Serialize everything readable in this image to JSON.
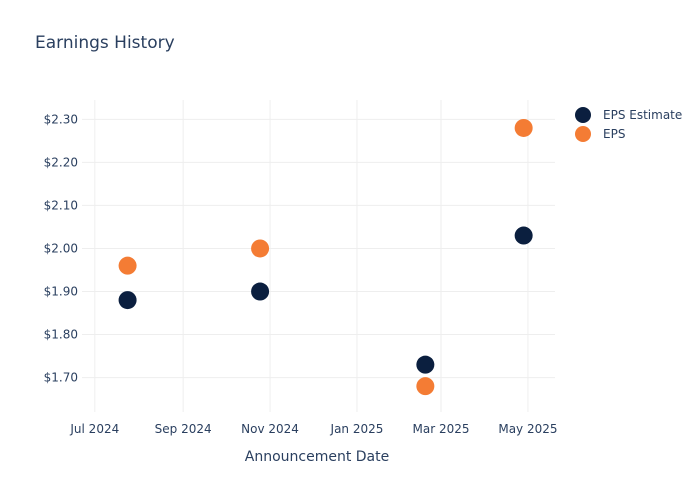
{
  "chart_data": {
    "type": "scatter",
    "title": "Earnings History",
    "xlabel": "Announcement Date",
    "ylabel": "",
    "x_ticks": [
      "2024-07-01",
      "2024-09-01",
      "2024-11-01",
      "2025-01-01",
      "2025-03-01",
      "2025-05-01"
    ],
    "x_tick_labels": [
      "Jul 2024",
      "Sep 2024",
      "Nov 2024",
      "Jan 2025",
      "Mar 2025",
      "May 2025"
    ],
    "xlim": [
      "2024-06-22",
      "2025-05-20"
    ],
    "y_ticks": [
      1.7,
      1.8,
      1.9,
      2.0,
      2.1,
      2.2,
      2.3
    ],
    "y_tick_labels": [
      "$1.70",
      "$1.80",
      "$1.90",
      "$2.00",
      "$2.10",
      "$2.20",
      "$2.30"
    ],
    "ylim": [
      1.62,
      2.345
    ],
    "grid": true,
    "legend_position": "top-right",
    "series": [
      {
        "name": "EPS Estimate",
        "color": "#0b1f3f",
        "x": [
          "2024-07-24",
          "2024-10-25",
          "2025-02-18",
          "2025-04-28"
        ],
        "y": [
          1.88,
          1.9,
          1.73,
          2.03
        ]
      },
      {
        "name": "EPS",
        "color": "#f47c34",
        "x": [
          "2024-07-24",
          "2024-10-25",
          "2025-02-18",
          "2025-04-28"
        ],
        "y": [
          1.96,
          2.0,
          1.68,
          2.28
        ]
      }
    ]
  }
}
